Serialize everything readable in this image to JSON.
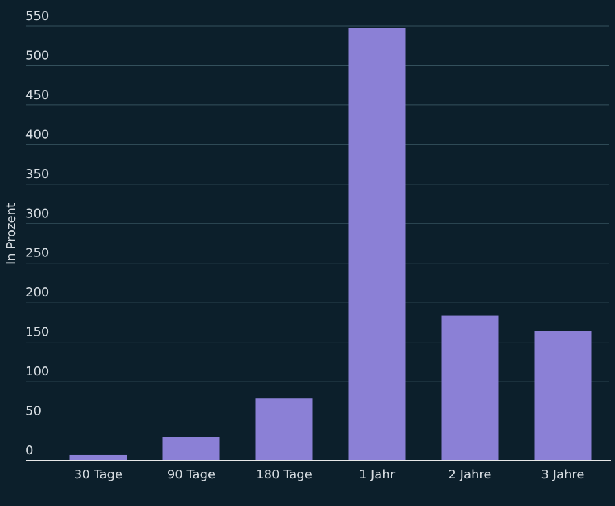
{
  "chart_data": {
    "type": "bar",
    "y_label": "In Prozent",
    "categories": [
      "30 Tage",
      "90 Tage",
      "180 Tage",
      "1 Jahr",
      "2 Jahre",
      "3 Jahre"
    ],
    "values": [
      7,
      30,
      79,
      548,
      184,
      164
    ],
    "color": "#8b80d6",
    "ylim": [
      0,
      550
    ],
    "yticks": [
      0,
      50,
      100,
      150,
      200,
      250,
      300,
      350,
      400,
      450,
      500,
      550
    ],
    "grid": true
  }
}
